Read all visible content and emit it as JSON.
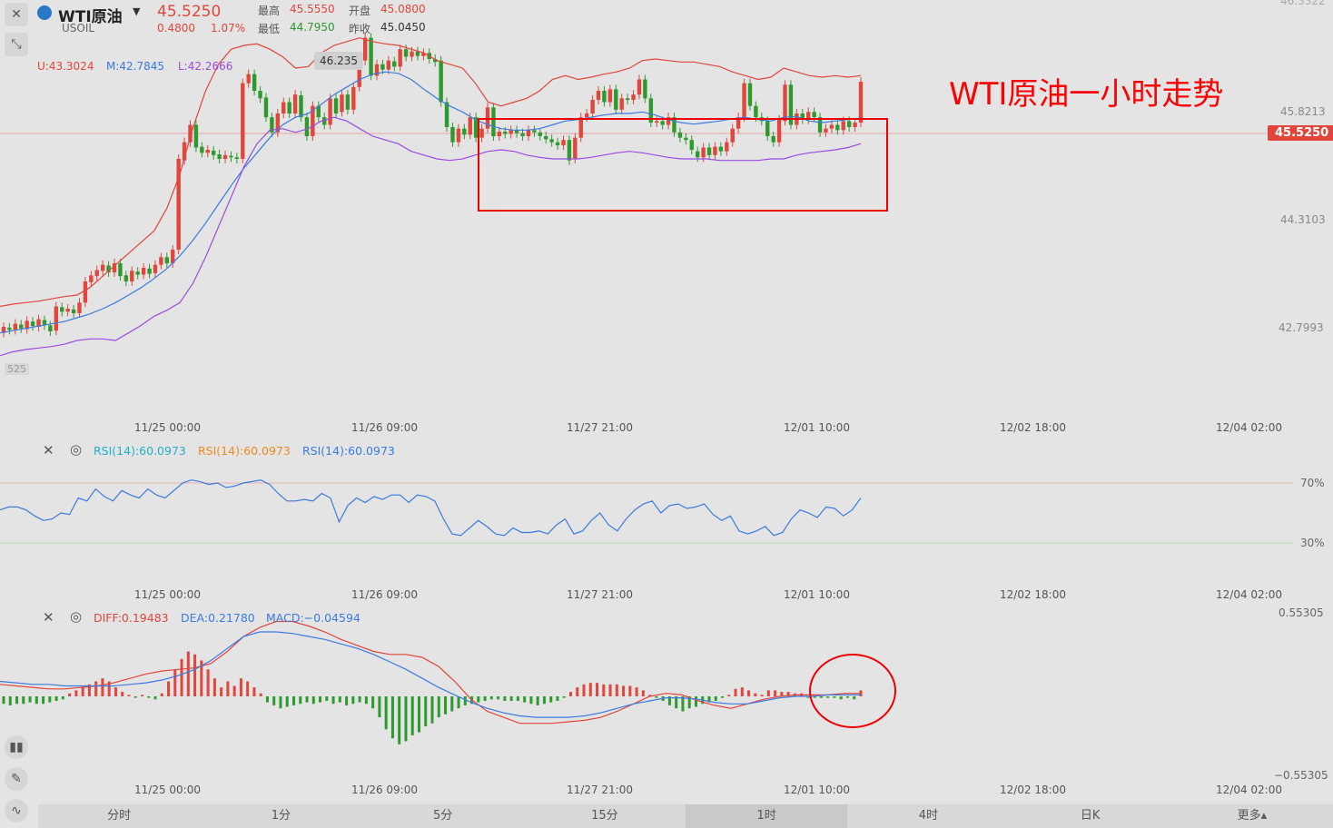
{
  "header": {
    "title": "WTI原油",
    "symbol": "USOIL",
    "price": "45.5250",
    "change": "0.4800",
    "change_pct": "1.07%",
    "high_label": "最高",
    "high_value": "45.5550",
    "open_label": "开盘",
    "open_value": "45.0800",
    "low_label": "最低",
    "low_value": "44.7950",
    "prev_label": "昨收",
    "prev_value": "45.0450"
  },
  "bollinger": {
    "u": "U:43.3024",
    "m": "M:42.7845",
    "l": "L:42.2666"
  },
  "annotation": "WTI原油一小时走势",
  "current_price_tag": "45.5250",
  "high_bubble": "46.235",
  "left_clip": "525",
  "price_axis": [
    "45.8213",
    "44.3103",
    "42.7993"
  ],
  "price_axis_top": "46.3322",
  "time_axis": [
    "11/25 00:00",
    "11/26 09:00",
    "11/27 21:00",
    "12/01 10:00",
    "12/02 18:00",
    "12/04 02:00"
  ],
  "rsi": {
    "label1": "RSI(14):60.0973",
    "label2": "RSI(14):60.0973",
    "label3": "RSI(14):60.0973",
    "level70": "70%",
    "level30": "30%"
  },
  "macd": {
    "diff": "DIFF:0.19483",
    "dea": "DEA:0.21780",
    "macd": "MACD:−0.04594",
    "axis_top": "0.55305",
    "axis_bottom": "−0.55305"
  },
  "periods": [
    "分时",
    "1分",
    "5分",
    "15分",
    "1时",
    "4时",
    "日K",
    "更多▴"
  ],
  "active_period": "1时",
  "colors": {
    "up": "#e0463b",
    "down": "#2e9a2e",
    "upper": "#e0463b",
    "mid": "#3a7be0",
    "lower": "#9a4be0",
    "rsi": "#3a7be0",
    "annotation": "#ff0000"
  },
  "icons": [
    "close-icon",
    "collapse-icon",
    "settings-icon",
    "drawing-icon",
    "indicator-icon",
    "candlestick-icon"
  ],
  "chart_data": {
    "type": "line",
    "title": "",
    "price_scale": [
      42.7993,
      46.3322
    ],
    "candles": [
      {
        "o": 42.2,
        "c": 42.28
      },
      {
        "o": 42.27,
        "c": 42.24
      },
      {
        "o": 42.24,
        "c": 42.32
      },
      {
        "o": 42.31,
        "c": 42.26
      },
      {
        "o": 42.25,
        "c": 42.36
      },
      {
        "o": 42.35,
        "c": 42.29
      },
      {
        "o": 42.28,
        "c": 42.38
      },
      {
        "o": 42.37,
        "c": 42.3
      },
      {
        "o": 42.3,
        "c": 42.22
      },
      {
        "o": 42.23,
        "c": 42.55
      },
      {
        "o": 42.54,
        "c": 42.48
      },
      {
        "o": 42.48,
        "c": 42.52
      },
      {
        "o": 42.51,
        "c": 42.46
      },
      {
        "o": 42.46,
        "c": 42.6
      },
      {
        "o": 42.6,
        "c": 42.88
      },
      {
        "o": 42.87,
        "c": 42.96
      },
      {
        "o": 42.95,
        "c": 43.03
      },
      {
        "o": 43.02,
        "c": 43.1
      },
      {
        "o": 43.09,
        "c": 43.0
      },
      {
        "o": 43.0,
        "c": 43.12
      },
      {
        "o": 43.12,
        "c": 42.95
      },
      {
        "o": 42.96,
        "c": 42.88
      },
      {
        "o": 42.88,
        "c": 43.02
      },
      {
        "o": 43.01,
        "c": 42.97
      },
      {
        "o": 42.97,
        "c": 43.06
      },
      {
        "o": 43.05,
        "c": 42.98
      },
      {
        "o": 42.99,
        "c": 43.1
      },
      {
        "o": 43.1,
        "c": 43.2
      },
      {
        "o": 43.2,
        "c": 43.12
      },
      {
        "o": 43.12,
        "c": 43.3
      },
      {
        "o": 43.3,
        "c": 44.5
      },
      {
        "o": 44.48,
        "c": 44.72
      },
      {
        "o": 44.72,
        "c": 44.95
      },
      {
        "o": 44.95,
        "c": 44.65
      },
      {
        "o": 44.66,
        "c": 44.58
      },
      {
        "o": 44.58,
        "c": 44.62
      },
      {
        "o": 44.61,
        "c": 44.55
      },
      {
        "o": 44.56,
        "c": 44.5
      },
      {
        "o": 44.5,
        "c": 44.55
      },
      {
        "o": 44.54,
        "c": 44.52
      },
      {
        "o": 44.52,
        "c": 44.5
      },
      {
        "o": 44.5,
        "c": 45.5
      },
      {
        "o": 45.5,
        "c": 45.62
      },
      {
        "o": 45.62,
        "c": 45.4
      },
      {
        "o": 45.4,
        "c": 45.3
      },
      {
        "o": 45.31,
        "c": 45.05
      },
      {
        "o": 45.05,
        "c": 44.85
      },
      {
        "o": 44.85,
        "c": 45.1
      },
      {
        "o": 45.1,
        "c": 45.25
      },
      {
        "o": 45.25,
        "c": 45.1
      },
      {
        "o": 45.1,
        "c": 45.35
      },
      {
        "o": 45.34,
        "c": 45.05
      },
      {
        "o": 45.05,
        "c": 44.8
      },
      {
        "o": 44.8,
        "c": 45.2
      },
      {
        "o": 45.2,
        "c": 45.05
      },
      {
        "o": 45.05,
        "c": 44.95
      },
      {
        "o": 44.95,
        "c": 45.3
      },
      {
        "o": 45.3,
        "c": 45.1
      },
      {
        "o": 45.12,
        "c": 45.35
      },
      {
        "o": 45.35,
        "c": 45.15
      },
      {
        "o": 45.15,
        "c": 45.45
      },
      {
        "o": 45.45,
        "c": 45.8
      },
      {
        "o": 45.8,
        "c": 46.1
      },
      {
        "o": 46.1,
        "c": 45.6
      },
      {
        "o": 45.6,
        "c": 45.75
      },
      {
        "o": 45.75,
        "c": 45.68
      },
      {
        "o": 45.68,
        "c": 45.8
      },
      {
        "o": 45.79,
        "c": 45.72
      },
      {
        "o": 45.72,
        "c": 45.95
      },
      {
        "o": 45.95,
        "c": 45.85
      },
      {
        "o": 45.85,
        "c": 45.92
      },
      {
        "o": 45.92,
        "c": 45.86
      },
      {
        "o": 45.86,
        "c": 45.9
      },
      {
        "o": 45.9,
        "c": 45.82
      },
      {
        "o": 45.82,
        "c": 45.78
      },
      {
        "o": 45.8,
        "c": 45.25
      },
      {
        "o": 45.25,
        "c": 44.92
      },
      {
        "o": 44.92,
        "c": 44.72
      },
      {
        "o": 44.72,
        "c": 44.9
      },
      {
        "o": 44.9,
        "c": 44.82
      },
      {
        "o": 44.82,
        "c": 45.05
      },
      {
        "o": 45.05,
        "c": 44.78
      },
      {
        "o": 44.78,
        "c": 44.9
      },
      {
        "o": 44.9,
        "c": 45.18
      },
      {
        "o": 45.18,
        "c": 44.8
      },
      {
        "o": 44.8,
        "c": 44.86
      },
      {
        "o": 44.86,
        "c": 44.83
      },
      {
        "o": 44.83,
        "c": 44.88
      },
      {
        "o": 44.88,
        "c": 44.84
      },
      {
        "o": 44.84,
        "c": 44.8
      },
      {
        "o": 44.8,
        "c": 44.88
      },
      {
        "o": 44.88,
        "c": 44.85
      },
      {
        "o": 44.85,
        "c": 44.8
      },
      {
        "o": 44.8,
        "c": 44.76
      },
      {
        "o": 44.76,
        "c": 44.72
      },
      {
        "o": 44.72,
        "c": 44.68
      },
      {
        "o": 44.68,
        "c": 44.75
      },
      {
        "o": 44.75,
        "c": 44.48
      },
      {
        "o": 44.5,
        "c": 44.78
      },
      {
        "o": 44.78,
        "c": 45.05
      },
      {
        "o": 45.05,
        "c": 45.1
      },
      {
        "o": 45.1,
        "c": 45.28
      },
      {
        "o": 45.28,
        "c": 45.4
      },
      {
        "o": 45.4,
        "c": 45.25
      },
      {
        "o": 45.25,
        "c": 45.42
      },
      {
        "o": 45.42,
        "c": 45.15
      },
      {
        "o": 45.15,
        "c": 45.3
      },
      {
        "o": 45.3,
        "c": 45.28
      },
      {
        "o": 45.28,
        "c": 45.35
      },
      {
        "o": 45.35,
        "c": 45.55
      },
      {
        "o": 45.55,
        "c": 45.3
      },
      {
        "o": 45.3,
        "c": 44.98
      },
      {
        "o": 44.98,
        "c": 45.0
      },
      {
        "o": 45.0,
        "c": 44.95
      },
      {
        "o": 44.95,
        "c": 45.05
      },
      {
        "o": 45.05,
        "c": 44.85
      },
      {
        "o": 44.85,
        "c": 44.78
      },
      {
        "o": 44.78,
        "c": 44.75
      },
      {
        "o": 44.75,
        "c": 44.62
      },
      {
        "o": 44.6,
        "c": 44.52
      },
      {
        "o": 44.52,
        "c": 44.65
      },
      {
        "o": 44.65,
        "c": 44.55
      },
      {
        "o": 44.55,
        "c": 44.66
      },
      {
        "o": 44.66,
        "c": 44.6
      },
      {
        "o": 44.6,
        "c": 44.72
      },
      {
        "o": 44.72,
        "c": 44.9
      },
      {
        "o": 44.9,
        "c": 45.05
      },
      {
        "o": 45.05,
        "c": 45.5
      },
      {
        "o": 45.5,
        "c": 45.2
      },
      {
        "o": 45.2,
        "c": 45.05
      },
      {
        "o": 45.05,
        "c": 45.0
      },
      {
        "o": 45.0,
        "c": 44.8
      },
      {
        "o": 44.8,
        "c": 44.72
      },
      {
        "o": 44.72,
        "c": 45.02
      },
      {
        "o": 45.0,
        "c": 45.48
      },
      {
        "o": 45.48,
        "c": 44.95
      },
      {
        "o": 44.95,
        "c": 45.1
      },
      {
        "o": 45.1,
        "c": 45.02
      },
      {
        "o": 45.02,
        "c": 45.12
      },
      {
        "o": 45.12,
        "c": 45.05
      },
      {
        "o": 45.05,
        "c": 44.85
      },
      {
        "o": 44.85,
        "c": 44.9
      },
      {
        "o": 44.9,
        "c": 44.95
      },
      {
        "o": 44.95,
        "c": 44.88
      },
      {
        "o": 44.88,
        "c": 45.0
      },
      {
        "o": 45.0,
        "c": 44.92
      },
      {
        "o": 44.92,
        "c": 44.98
      },
      {
        "o": 44.98,
        "c": 45.52
      }
    ],
    "bollinger_upper": [
      42.55,
      42.58,
      42.6,
      42.62,
      42.65,
      42.68,
      42.7,
      42.8,
      42.95,
      43.1,
      43.25,
      43.4,
      43.55,
      43.85,
      44.3,
      44.9,
      45.4,
      45.75,
      45.95,
      46.0,
      46.02,
      45.95,
      45.85,
      45.7,
      45.72,
      45.9,
      46.0,
      46.05,
      46.1,
      46.05,
      46.02,
      46.0,
      45.95,
      45.9,
      45.8,
      45.75,
      45.7,
      45.5,
      45.25,
      45.2,
      45.25,
      45.3,
      45.4,
      45.55,
      45.6,
      45.55,
      45.58,
      45.62,
      45.65,
      45.7,
      45.8,
      45.82,
      45.8,
      45.78,
      45.78,
      45.75,
      45.72,
      45.65,
      45.6,
      45.55,
      45.58,
      45.7,
      45.65,
      45.6,
      45.58,
      45.6,
      45.58,
      45.6
    ],
    "bollinger_mid": [
      42.2,
      42.23,
      42.26,
      42.29,
      42.32,
      42.35,
      42.4,
      42.45,
      42.52,
      42.6,
      42.7,
      42.8,
      42.92,
      43.05,
      43.22,
      43.42,
      43.65,
      43.9,
      44.15,
      44.38,
      44.58,
      44.78,
      44.95,
      45.05,
      45.1,
      45.22,
      45.35,
      45.45,
      45.55,
      45.62,
      45.65,
      45.63,
      45.55,
      45.42,
      45.3,
      45.2,
      45.12,
      45.02,
      44.95,
      44.9,
      44.88,
      44.88,
      44.9,
      44.95,
      45.0,
      45.02,
      45.05,
      45.08,
      45.1,
      45.1,
      45.12,
      45.08,
      45.02,
      44.98,
      44.96,
      44.98,
      45.0,
      45.03,
      45.05,
      45.02,
      45.0,
      45.05,
      45.06,
      45.0,
      44.98,
      45.0,
      45.02,
      45.04
    ],
    "bollinger_lower": [
      41.9,
      41.95,
      41.98,
      42.0,
      42.02,
      42.05,
      42.1,
      42.12,
      42.12,
      42.1,
      42.2,
      42.3,
      42.42,
      42.5,
      42.6,
      42.85,
      43.2,
      43.6,
      44.0,
      44.4,
      44.7,
      44.88,
      44.9,
      44.85,
      44.9,
      45.0,
      45.05,
      45.0,
      44.9,
      44.8,
      44.75,
      44.7,
      44.6,
      44.55,
      44.5,
      44.48,
      44.5,
      44.55,
      44.6,
      44.62,
      44.6,
      44.55,
      44.52,
      44.5,
      44.5,
      44.5,
      44.52,
      44.55,
      44.58,
      44.6,
      44.58,
      44.55,
      44.52,
      44.5,
      44.5,
      44.5,
      44.48,
      44.48,
      44.48,
      44.48,
      44.5,
      44.5,
      44.55,
      44.58,
      44.6,
      44.62,
      44.65,
      44.7
    ],
    "rsi_values": [
      52,
      54,
      54,
      52,
      48,
      45,
      46,
      50,
      49,
      60,
      58,
      66,
      61,
      58,
      65,
      62,
      60,
      66,
      62,
      60,
      65,
      70,
      72,
      71,
      69,
      70,
      67,
      68,
      70,
      71,
      72,
      69,
      63,
      58,
      58,
      59,
      58,
      63,
      60,
      44,
      55,
      60,
      57,
      61,
      59,
      62,
      62,
      57,
      62,
      61,
      58,
      46,
      36,
      35,
      40,
      45,
      41,
      36,
      35,
      40,
      37,
      37,
      38,
      36,
      42,
      46,
      36,
      38,
      45,
      50,
      42,
      38,
      46,
      52,
      56,
      58,
      50,
      55,
      56,
      53,
      54,
      56,
      49,
      45,
      48,
      38,
      36,
      38,
      41,
      35,
      37,
      46,
      52,
      50,
      47,
      54,
      53,
      48,
      52,
      60
    ],
    "macd_hist": [
      -0.05,
      -0.06,
      -0.05,
      -0.05,
      -0.04,
      -0.05,
      -0.05,
      -0.04,
      -0.03,
      -0.02,
      0.02,
      0.04,
      0.06,
      0.08,
      0.1,
      0.12,
      0.1,
      0.06,
      0.03,
      0.01,
      -0.01,
      0.01,
      -0.01,
      -0.02,
      0.02,
      0.1,
      0.18,
      0.25,
      0.3,
      0.28,
      0.24,
      0.18,
      0.12,
      0.06,
      0.1,
      0.07,
      0.12,
      0.1,
      0.06,
      0.02,
      -0.04,
      -0.06,
      -0.08,
      -0.07,
      -0.06,
      -0.05,
      -0.04,
      -0.05,
      -0.04,
      -0.03,
      -0.05,
      -0.04,
      -0.06,
      -0.05,
      -0.04,
      -0.05,
      -0.08,
      -0.14,
      -0.22,
      -0.28,
      -0.32,
      -0.3,
      -0.26,
      -0.24,
      -0.2,
      -0.18,
      -0.14,
      -0.12,
      -0.1,
      -0.08,
      -0.06,
      -0.05,
      -0.04,
      -0.03,
      -0.02,
      -0.02,
      -0.03,
      -0.03,
      -0.03,
      -0.04,
      -0.05,
      -0.06,
      -0.05,
      -0.04,
      -0.03,
      -0.01,
      0.03,
      0.06,
      0.08,
      0.09,
      0.09,
      0.08,
      0.08,
      0.08,
      0.07,
      0.07,
      0.06,
      0.04,
      0.01,
      -0.01,
      -0.03,
      -0.06,
      -0.08,
      -0.1,
      -0.08,
      -0.07,
      -0.05,
      -0.04,
      -0.03,
      -0.01,
      0.01,
      0.05,
      0.06,
      0.04,
      0.02,
      0.01,
      0.04,
      0.04,
      0.03,
      0.03,
      0.02,
      0.02,
      -0.01,
      -0.01,
      -0.01,
      -0.01,
      -0.01,
      -0.02,
      -0.01,
      -0.02,
      0.04
    ],
    "macd_diff": [
      0.08,
      0.07,
      0.06,
      0.05,
      0.05,
      0.06,
      0.07,
      0.09,
      0.12,
      0.15,
      0.17,
      0.18,
      0.19,
      0.22,
      0.3,
      0.4,
      0.46,
      0.5,
      0.5,
      0.47,
      0.43,
      0.38,
      0.34,
      0.3,
      0.28,
      0.28,
      0.26,
      0.2,
      0.1,
      -0.02,
      -0.1,
      -0.14,
      -0.18,
      -0.18,
      -0.18,
      -0.17,
      -0.16,
      -0.14,
      -0.1,
      -0.05,
      0.0,
      0.02,
      0.01,
      -0.03,
      -0.06,
      -0.08,
      -0.05,
      -0.02,
      0.0,
      0.01,
      0.01,
      0.01,
      0.02,
      0.02
    ],
    "macd_dea": [
      0.1,
      0.09,
      0.08,
      0.08,
      0.07,
      0.07,
      0.07,
      0.07,
      0.08,
      0.09,
      0.11,
      0.14,
      0.18,
      0.24,
      0.32,
      0.4,
      0.43,
      0.43,
      0.42,
      0.4,
      0.38,
      0.35,
      0.32,
      0.28,
      0.23,
      0.18,
      0.12,
      0.06,
      0.01,
      -0.04,
      -0.08,
      -0.11,
      -0.13,
      -0.14,
      -0.14,
      -0.14,
      -0.13,
      -0.11,
      -0.08,
      -0.05,
      -0.03,
      -0.01,
      -0.01,
      -0.02,
      -0.04,
      -0.05,
      -0.05,
      -0.03,
      -0.01,
      0.0,
      0.0,
      0.01,
      0.01,
      0.01
    ]
  }
}
